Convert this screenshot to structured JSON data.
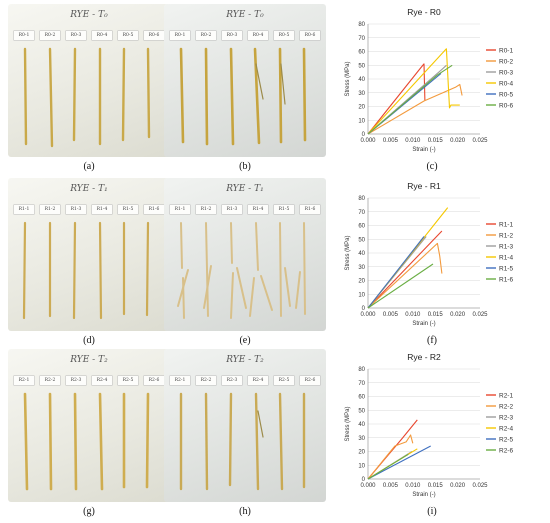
{
  "photos": [
    {
      "id": "a",
      "title": "RYE - T₀",
      "caption": "(a)",
      "tags": [
        "R0-1",
        "R0-2",
        "R0-3",
        "R0-4",
        "R0-5",
        "R0-6"
      ]
    },
    {
      "id": "b",
      "title": "RYE - T₀",
      "caption": "(b)",
      "tags": [
        "R0-1",
        "R0-2",
        "R0-3",
        "R0-4",
        "R0-5",
        "R0-6"
      ]
    },
    {
      "id": "d",
      "title": "RYE - T₁",
      "caption": "(d)",
      "tags": [
        "R1-1",
        "R1-2",
        "R1-3",
        "R1-4",
        "R1-5",
        "R1-6"
      ]
    },
    {
      "id": "e",
      "title": "RYE - T₁",
      "caption": "(e)",
      "tags": [
        "R1-1",
        "R1-2",
        "R1-3",
        "R1-4",
        "R1-5",
        "R1-6"
      ]
    },
    {
      "id": "g",
      "title": "RYE - T₂",
      "caption": "(g)",
      "tags": [
        "R2-1",
        "R2-2",
        "R2-3",
        "R2-4",
        "R2-5",
        "R2-6"
      ]
    },
    {
      "id": "h",
      "title": "RYE - T₂",
      "caption": "(h)",
      "tags": [
        "R2-1",
        "R2-2",
        "R2-3",
        "R2-4",
        "R2-5",
        "R2-6"
      ]
    }
  ],
  "chart_captions": {
    "c": "(c)",
    "f": "(f)",
    "i": "(i)"
  },
  "series_colors": [
    "#e8472f",
    "#f39a3d",
    "#9e9e9e",
    "#f5c800",
    "#3f6fbf",
    "#6aae44"
  ],
  "chart_data": [
    {
      "type": "line",
      "title": "Rye - R0",
      "xlabel": "Strain (-)",
      "ylabel": "Stress (MPa)",
      "xlim": [
        0,
        0.025
      ],
      "ylim": [
        0,
        80
      ],
      "xticks": [
        "0.000",
        "0.005",
        "0.010",
        "0.015",
        "0.020",
        "0.025"
      ],
      "yticks": [
        "0",
        "10",
        "20",
        "30",
        "40",
        "50",
        "60",
        "70",
        "80"
      ],
      "grid": true,
      "legend": "right",
      "series": [
        {
          "name": "R0-1",
          "points": [
            [
              0,
              0
            ],
            [
              0.0115,
              47
            ],
            [
              0.0125,
              51
            ],
            [
              0.0127,
              24
            ]
          ]
        },
        {
          "name": "R0-2",
          "points": [
            [
              0,
              0
            ],
            [
              0.0125,
              24
            ],
            [
              0.0195,
              34
            ],
            [
              0.0205,
              36
            ],
            [
              0.021,
              28
            ]
          ]
        },
        {
          "name": "R0-3",
          "points": [
            [
              0,
              0
            ],
            [
              0.0165,
              47
            ],
            [
              0.0175,
              50
            ]
          ]
        },
        {
          "name": "R0-4",
          "points": [
            [
              0,
              0
            ],
            [
              0.0175,
              62
            ],
            [
              0.0182,
              19
            ],
            [
              0.0185,
              21
            ],
            [
              0.0205,
              21
            ]
          ]
        },
        {
          "name": "R0-5",
          "points": [
            [
              0,
              0
            ],
            [
              0.0163,
              44
            ]
          ]
        },
        {
          "name": "R0-6",
          "points": [
            [
              0,
              0
            ],
            [
              0.0155,
              43
            ],
            [
              0.0188,
              50
            ]
          ]
        }
      ]
    },
    {
      "type": "line",
      "title": "Rye - R1",
      "xlabel": "Strain (-)",
      "ylabel": "Stress (MPa)",
      "xlim": [
        0,
        0.025
      ],
      "ylim": [
        0,
        80
      ],
      "xticks": [
        "0.000",
        "0.005",
        "0.010",
        "0.015",
        "0.020",
        "0.025"
      ],
      "yticks": [
        "0",
        "10",
        "20",
        "30",
        "40",
        "50",
        "60",
        "70",
        "80"
      ],
      "grid": true,
      "legend": "right",
      "series": [
        {
          "name": "R1-1",
          "points": [
            [
              0,
              0
            ],
            [
              0.0165,
              56
            ]
          ]
        },
        {
          "name": "R1-2",
          "points": [
            [
              0,
              0
            ],
            [
              0.0155,
              47
            ],
            [
              0.016,
              38
            ],
            [
              0.0165,
              25
            ]
          ]
        },
        {
          "name": "R1-3",
          "points": [
            [
              0,
              0
            ],
            [
              0.013,
              52
            ]
          ]
        },
        {
          "name": "R1-4",
          "points": [
            [
              0,
              0
            ],
            [
              0.0178,
              73
            ]
          ]
        },
        {
          "name": "R1-5",
          "points": [
            [
              0,
              0
            ],
            [
              0.0125,
              52
            ]
          ]
        },
        {
          "name": "R1-6",
          "points": [
            [
              0,
              0
            ],
            [
              0.0145,
              32
            ]
          ]
        }
      ]
    },
    {
      "type": "line",
      "title": "Rye - R2",
      "xlabel": "Strain (-)",
      "ylabel": "Stress (MPa)",
      "xlim": [
        0,
        0.025
      ],
      "ylim": [
        0,
        80
      ],
      "xticks": [
        "0.000",
        "0.005",
        "0.010",
        "0.015",
        "0.020",
        "0.025"
      ],
      "yticks": [
        "0",
        "10",
        "20",
        "30",
        "40",
        "50",
        "60",
        "70",
        "80"
      ],
      "grid": true,
      "legend": "right",
      "series": [
        {
          "name": "R2-1",
          "points": [
            [
              0,
              0
            ],
            [
              0.0075,
              29
            ],
            [
              0.0085,
              33
            ],
            [
              0.011,
              43
            ]
          ]
        },
        {
          "name": "R2-2",
          "points": [
            [
              0,
              0
            ],
            [
              0.006,
              24
            ],
            [
              0.0085,
              27
            ],
            [
              0.0095,
              32
            ],
            [
              0.01,
              26
            ]
          ]
        },
        {
          "name": "R2-3",
          "points": [
            [
              0,
              0
            ],
            [
              0.0098,
              20
            ]
          ]
        },
        {
          "name": "R2-4",
          "points": [
            [
              0,
              0
            ],
            [
              0.011,
              22
            ]
          ]
        },
        {
          "name": "R2-5",
          "points": [
            [
              0,
              0
            ],
            [
              0.014,
              24
            ]
          ]
        },
        {
          "name": "R2-6",
          "points": [
            [
              0,
              0
            ],
            [
              0.009,
              18
            ]
          ]
        }
      ]
    }
  ]
}
